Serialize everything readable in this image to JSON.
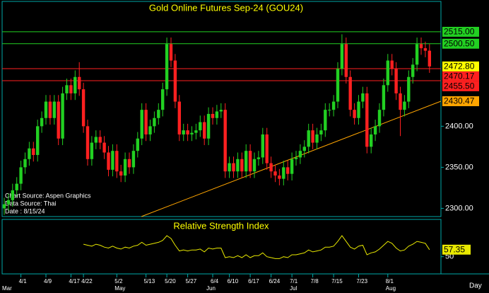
{
  "chart_data": [
    {
      "type": "candlestick",
      "title": "Gold Online Futures Sep-24 (GOU24)",
      "annotations": [
        "Chart Source: Aspen Graphics",
        "Data Source: Thai",
        "Date : 8/15/24"
      ],
      "x_unit": "Day",
      "categories": [
        null,
        null,
        null,
        null,
        "4/1",
        null,
        null,
        null,
        null,
        null,
        "4/9",
        null,
        null,
        null,
        null,
        null,
        "4/17",
        null,
        null,
        "4/22",
        null,
        null,
        null,
        null,
        null,
        null,
        null,
        "5/2",
        null,
        null,
        null,
        null,
        null,
        null,
        "5/13",
        null,
        null,
        null,
        null,
        "5/20",
        null,
        null,
        null,
        null,
        "5/27",
        null,
        null,
        null,
        null,
        null,
        "6/4",
        null,
        null,
        null,
        "6/10",
        null,
        null,
        null,
        null,
        "6/17",
        null,
        null,
        null,
        null,
        "6/24",
        null,
        null,
        null,
        null,
        "7/1",
        null,
        null,
        null,
        null,
        "7/8",
        null,
        null,
        null,
        null,
        "7/15",
        null,
        null,
        null,
        null,
        null,
        "7/23",
        null,
        null,
        null,
        null,
        null,
        null,
        "8/1",
        null,
        null,
        null,
        null,
        null,
        null,
        null,
        null,
        null,
        null
      ],
      "months": [
        "Mar",
        null,
        null,
        null,
        null,
        null,
        null,
        null,
        null,
        null,
        null,
        null,
        null,
        null,
        null,
        null,
        null,
        null,
        null,
        null,
        null,
        null,
        null,
        null,
        null,
        null,
        null,
        "May",
        null,
        null,
        null,
        null,
        null,
        null,
        null,
        null,
        null,
        null,
        null,
        null,
        null,
        null,
        null,
        null,
        null,
        null,
        null,
        null,
        null,
        "Jun",
        null,
        null,
        null,
        null,
        null,
        null,
        null,
        null,
        null,
        null,
        null,
        null,
        null,
        null,
        null,
        null,
        null,
        null,
        null,
        "Jul",
        null,
        null,
        null,
        null,
        null,
        null,
        null,
        null,
        null,
        null,
        null,
        null,
        null,
        null,
        null,
        null,
        null,
        null,
        null,
        null,
        null,
        null,
        "Aug",
        null,
        null,
        null,
        null,
        null,
        null,
        null,
        null,
        null,
        null
      ],
      "open": [
        2300,
        2305,
        2310,
        2322,
        2330,
        2350,
        2360,
        2373,
        2365,
        2400,
        2410,
        2430,
        2410,
        2430,
        2385,
        2440,
        2450,
        2440,
        2460,
        2445,
        2400,
        2360,
        2380,
        2387,
        2380,
        2368,
        2347,
        2370,
        2345,
        2340,
        2360,
        2350,
        2370,
        2385,
        2420,
        2390,
        2400,
        2410,
        2420,
        2445,
        2500,
        2480,
        2430,
        2390,
        2395,
        2390,
        2392,
        2395,
        2405,
        2385,
        2415,
        2410,
        2418,
        2420,
        2345,
        2355,
        2345,
        2360,
        2345,
        2370,
        2345,
        2360,
        2362,
        2390,
        2355,
        2345,
        2340,
        2336,
        2350,
        2342,
        2360,
        2362,
        2370,
        2375,
        2395,
        2380,
        2390,
        2395,
        2420,
        2420,
        2430,
        2470,
        2500,
        2460,
        2420,
        2410,
        2430,
        2440,
        2375,
        2390,
        2400,
        2420,
        2450,
        2480,
        2470,
        2440,
        2420,
        2430,
        2460,
        2475,
        2500,
        2495,
        2492
      ],
      "high": [
        2313,
        2318,
        2330,
        2338,
        2358,
        2368,
        2381,
        2381,
        2408,
        2418,
        2438,
        2438,
        2438,
        2438,
        2448,
        2458,
        2458,
        2468,
        2478,
        2453,
        2408,
        2388,
        2395,
        2395,
        2388,
        2376,
        2378,
        2378,
        2353,
        2368,
        2368,
        2378,
        2393,
        2428,
        2428,
        2408,
        2418,
        2428,
        2453,
        2508,
        2508,
        2488,
        2438,
        2403,
        2403,
        2400,
        2403,
        2413,
        2413,
        2423,
        2423,
        2426,
        2428,
        2428,
        2363,
        2363,
        2368,
        2368,
        2378,
        2378,
        2368,
        2370,
        2398,
        2398,
        2363,
        2353,
        2348,
        2358,
        2358,
        2368,
        2370,
        2378,
        2383,
        2403,
        2403,
        2398,
        2403,
        2428,
        2428,
        2438,
        2478,
        2512,
        2508,
        2468,
        2428,
        2438,
        2448,
        2448,
        2398,
        2408,
        2428,
        2458,
        2488,
        2488,
        2478,
        2448,
        2438,
        2468,
        2483,
        2508,
        2508,
        2503,
        2500
      ],
      "low": [
        2292,
        2297,
        2302,
        2314,
        2322,
        2342,
        2352,
        2357,
        2357,
        2392,
        2402,
        2402,
        2402,
        2377,
        2377,
        2432,
        2432,
        2432,
        2437,
        2392,
        2352,
        2352,
        2372,
        2372,
        2360,
        2339,
        2339,
        2337,
        2332,
        2332,
        2342,
        2342,
        2362,
        2377,
        2382,
        2382,
        2392,
        2402,
        2412,
        2437,
        2472,
        2422,
        2382,
        2382,
        2382,
        2382,
        2384,
        2387,
        2377,
        2377,
        2402,
        2402,
        2410,
        2337,
        2337,
        2337,
        2337,
        2337,
        2337,
        2337,
        2337,
        2352,
        2354,
        2347,
        2337,
        2332,
        2328,
        2328,
        2334,
        2334,
        2352,
        2354,
        2362,
        2367,
        2372,
        2372,
        2382,
        2387,
        2412,
        2412,
        2422,
        2462,
        2452,
        2412,
        2402,
        2402,
        2422,
        2367,
        2367,
        2382,
        2392,
        2412,
        2442,
        2462,
        2432,
        2388,
        2412,
        2422,
        2452,
        2467,
        2487,
        2484,
        2465
      ],
      "close": [
        2305,
        2310,
        2322,
        2330,
        2350,
        2360,
        2373,
        2365,
        2400,
        2410,
        2430,
        2410,
        2430,
        2385,
        2440,
        2450,
        2440,
        2460,
        2445,
        2400,
        2360,
        2380,
        2387,
        2380,
        2368,
        2347,
        2370,
        2345,
        2340,
        2360,
        2350,
        2370,
        2385,
        2420,
        2390,
        2400,
        2410,
        2420,
        2445,
        2500,
        2480,
        2430,
        2390,
        2395,
        2390,
        2392,
        2395,
        2405,
        2385,
        2415,
        2410,
        2418,
        2420,
        2345,
        2355,
        2345,
        2360,
        2345,
        2370,
        2345,
        2360,
        2362,
        2390,
        2355,
        2345,
        2340,
        2336,
        2350,
        2342,
        2360,
        2362,
        2370,
        2375,
        2395,
        2380,
        2390,
        2395,
        2420,
        2420,
        2430,
        2470,
        2500,
        2460,
        2420,
        2410,
        2430,
        2440,
        2375,
        2390,
        2400,
        2420,
        2450,
        2480,
        2470,
        2440,
        2420,
        2430,
        2460,
        2475,
        2500,
        2495,
        2492,
        2472.8
      ],
      "up_color": "#22d022",
      "down_color": "#ff2020",
      "ylim": [
        2290,
        2552
      ],
      "yticks": [
        {
          "value": 2300,
          "label": "2300.00"
        },
        {
          "value": 2350,
          "label": "2350.00"
        },
        {
          "value": 2400,
          "label": "2400.00"
        }
      ],
      "levels": [
        {
          "value": 2515,
          "label": "2515.00",
          "color": "#22d022",
          "line": true
        },
        {
          "value": 2500.5,
          "label": "2500.50",
          "color": "#22d022",
          "line": true
        },
        {
          "value": 2472.8,
          "label": "2472.80",
          "color": "#ffff00",
          "line": false
        },
        {
          "value": 2470.17,
          "label": "2470.17",
          "color": "#ff2020",
          "line": true
        },
        {
          "value": 2455.5,
          "label": "2455.50",
          "color": "#ff2020",
          "line": true
        },
        {
          "value": 2430.47,
          "label": "2430.47",
          "color": "#ffa500",
          "line": false
        }
      ],
      "trendline": {
        "color": "#ffa500",
        "values": [
          2290,
          2430.47
        ]
      }
    },
    {
      "type": "line",
      "title": "Relative Strength Index",
      "color": "#e8e800",
      "values": [
        null,
        null,
        null,
        null,
        null,
        null,
        null,
        null,
        null,
        null,
        null,
        null,
        null,
        null,
        null,
        null,
        null,
        null,
        null,
        63,
        62,
        61,
        63,
        62,
        60,
        59,
        61,
        59,
        58,
        60,
        59,
        61,
        62,
        65,
        62,
        63,
        64,
        65,
        67,
        72,
        69,
        62,
        56,
        57,
        56,
        57,
        57,
        58,
        55,
        59,
        58,
        59,
        59,
        49,
        50,
        49,
        51,
        49,
        52,
        49,
        51,
        51,
        54,
        50,
        49,
        48,
        48,
        50,
        49,
        52,
        52,
        53,
        54,
        57,
        55,
        56,
        57,
        60,
        60,
        61,
        66,
        72,
        66,
        60,
        58,
        61,
        62,
        52,
        54,
        55,
        58,
        62,
        66,
        64,
        59,
        56,
        57,
        61,
        63,
        66,
        65,
        64,
        57.35
      ],
      "ylim": [
        32,
        89
      ],
      "yticks": [
        50
      ]
    }
  ]
}
